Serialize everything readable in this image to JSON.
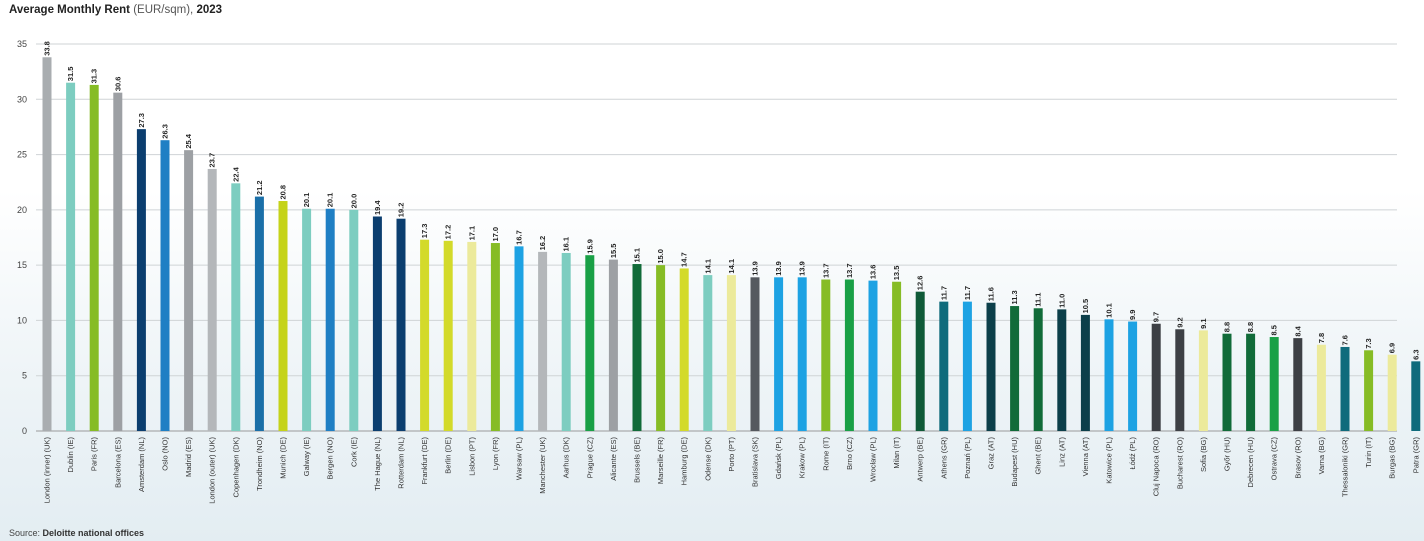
{
  "title_main": "Average Monthly Rent",
  "title_unit": "(EUR/sqm),",
  "title_year": "2023",
  "source_label": "Source:",
  "source_value": "Deloitte national offices",
  "chart_data": {
    "type": "bar",
    "title": "Average Monthly Rent (EUR/sqm), 2023",
    "ylim": [
      0,
      35
    ],
    "yticks": [
      0,
      5,
      10,
      15,
      20,
      25,
      30,
      35
    ],
    "grid": true,
    "categories": [
      "London (inner) (UK)",
      "Dublin (IE)",
      "Paris (FR)",
      "Barcelona (ES)",
      "Amsterdam (NL)",
      "Oslo (NO)",
      "Madrid (ES)",
      "London (outer) (UK)",
      "Copenhagen (DK)",
      "Trondheim (NO)",
      "Munich (DE)",
      "Galway (IE)",
      "Bergen (NO)",
      "Cork (IE)",
      "The Hague (NL)",
      "Rotterdam (NL)",
      "Frankfurt (DE)",
      "Berlin (DE)",
      "Lisbon (PT)",
      "Lyon (FR)",
      "Warsaw (PL)",
      "Manchester (UK)",
      "Aarhus (DK)",
      "Prague (CZ)",
      "Alicante (ES)",
      "Brussels (BE)",
      "Marseille (FR)",
      "Hamburg (DE)",
      "Odense (DK)",
      "Porto (PT)",
      "Bratislava (SK)",
      "Gdańsk (PL)",
      "Krakow (PL)",
      "Rome (IT)",
      "Brno (CZ)",
      "Wrocław (PL)",
      "Milan (IT)",
      "Antwerp (BE)",
      "Athens (GR)",
      "Poznań (PL)",
      "Graz (AT)",
      "Budapest (HU)",
      "Ghent (BE)",
      "Linz (AT)",
      "Vienna (AT)",
      "Katowice (PL)",
      "Łódź (PL)",
      "Cluj Napoca (RO)",
      "Bucharest (RO)",
      "Sofia (BG)",
      "Győr (HU)",
      "Debrecen (HU)",
      "Ostrava (CZ)",
      "Brasov (RO)",
      "Varna (BG)",
      "Thessaloniki (GR)",
      "Turin (IT)",
      "Burgas (BG)",
      "Patra (GR)"
    ],
    "values": [
      33.8,
      31.5,
      31.3,
      30.6,
      27.3,
      26.3,
      25.4,
      23.7,
      22.4,
      21.2,
      20.8,
      20.1,
      20.1,
      20.0,
      19.4,
      19.2,
      17.3,
      17.2,
      17.1,
      17.0,
      16.7,
      16.2,
      16.1,
      15.9,
      15.5,
      15.1,
      15.0,
      14.7,
      14.1,
      14.1,
      13.9,
      13.9,
      13.9,
      13.7,
      13.7,
      13.6,
      13.5,
      12.6,
      11.7,
      11.7,
      11.6,
      11.3,
      11.1,
      11.0,
      10.5,
      10.1,
      9.9,
      9.7,
      9.2,
      9.1,
      8.8,
      8.8,
      8.5,
      8.4,
      7.8,
      7.6,
      7.3,
      6.9,
      6.3
    ],
    "value_labels": [
      "33.8",
      "31.5",
      "31.3",
      "30.6",
      "27.3",
      "26.3",
      "25.4",
      "23.7",
      "22.4",
      "21.2",
      "20.8",
      "20.1",
      "20.1",
      "20.0",
      "19.4",
      "19.2",
      "17.3",
      "17.2",
      "17.1",
      "17.0",
      "16.7",
      "16.2",
      "16.1",
      "15.9",
      "15.5",
      "15.1",
      "15.0",
      "14.7",
      "14.1",
      "14.1",
      "13.9",
      "13.9",
      "13.9",
      "13.7",
      "13.7",
      "13.6",
      "13.5",
      "12.6",
      "11.7",
      "11.7",
      "11.6",
      "11.3",
      "11.1",
      "11.0",
      "10.5",
      "10.1",
      "9.9",
      "9.7",
      "9.2",
      "9.1",
      "8.8",
      "8.8",
      "8.5",
      "8.4",
      "7.8",
      "7.6",
      "7.3",
      "6.9",
      "6.3"
    ],
    "colors": [
      "#a9adb0",
      "#7dcdc0",
      "#86bc25",
      "#9da0a4",
      "#0b3e6f",
      "#1f7fc4",
      "#9da0a4",
      "#b4b7ba",
      "#7dcdc0",
      "#1a6fa8",
      "#c5d319",
      "#7dcdc0",
      "#1f7fc4",
      "#7dcdc0",
      "#0b3e6f",
      "#0b3e6f",
      "#d3da2a",
      "#d3da2a",
      "#ecea9b",
      "#86bc25",
      "#1da2e3",
      "#b4b7ba",
      "#7dcdc0",
      "#19a046",
      "#9da0a4",
      "#116b39",
      "#86bc25",
      "#d3da2a",
      "#7dcdc0",
      "#ecea9b",
      "#55595f",
      "#1da2e3",
      "#1da2e3",
      "#86bc25",
      "#19a046",
      "#1da2e3",
      "#86bc25",
      "#0f5a38",
      "#0f6b7c",
      "#1da2e3",
      "#0c3f4a",
      "#116b39",
      "#116b39",
      "#0c3f4a",
      "#0c3f4a",
      "#1da2e3",
      "#1da2e3",
      "#3d4045",
      "#3d4045",
      "#ecea9b",
      "#116b39",
      "#116b39",
      "#19a046",
      "#3d4045",
      "#ecea9b",
      "#0f6b7c",
      "#86bc25",
      "#ecea9b",
      "#0f6b7c"
    ]
  }
}
